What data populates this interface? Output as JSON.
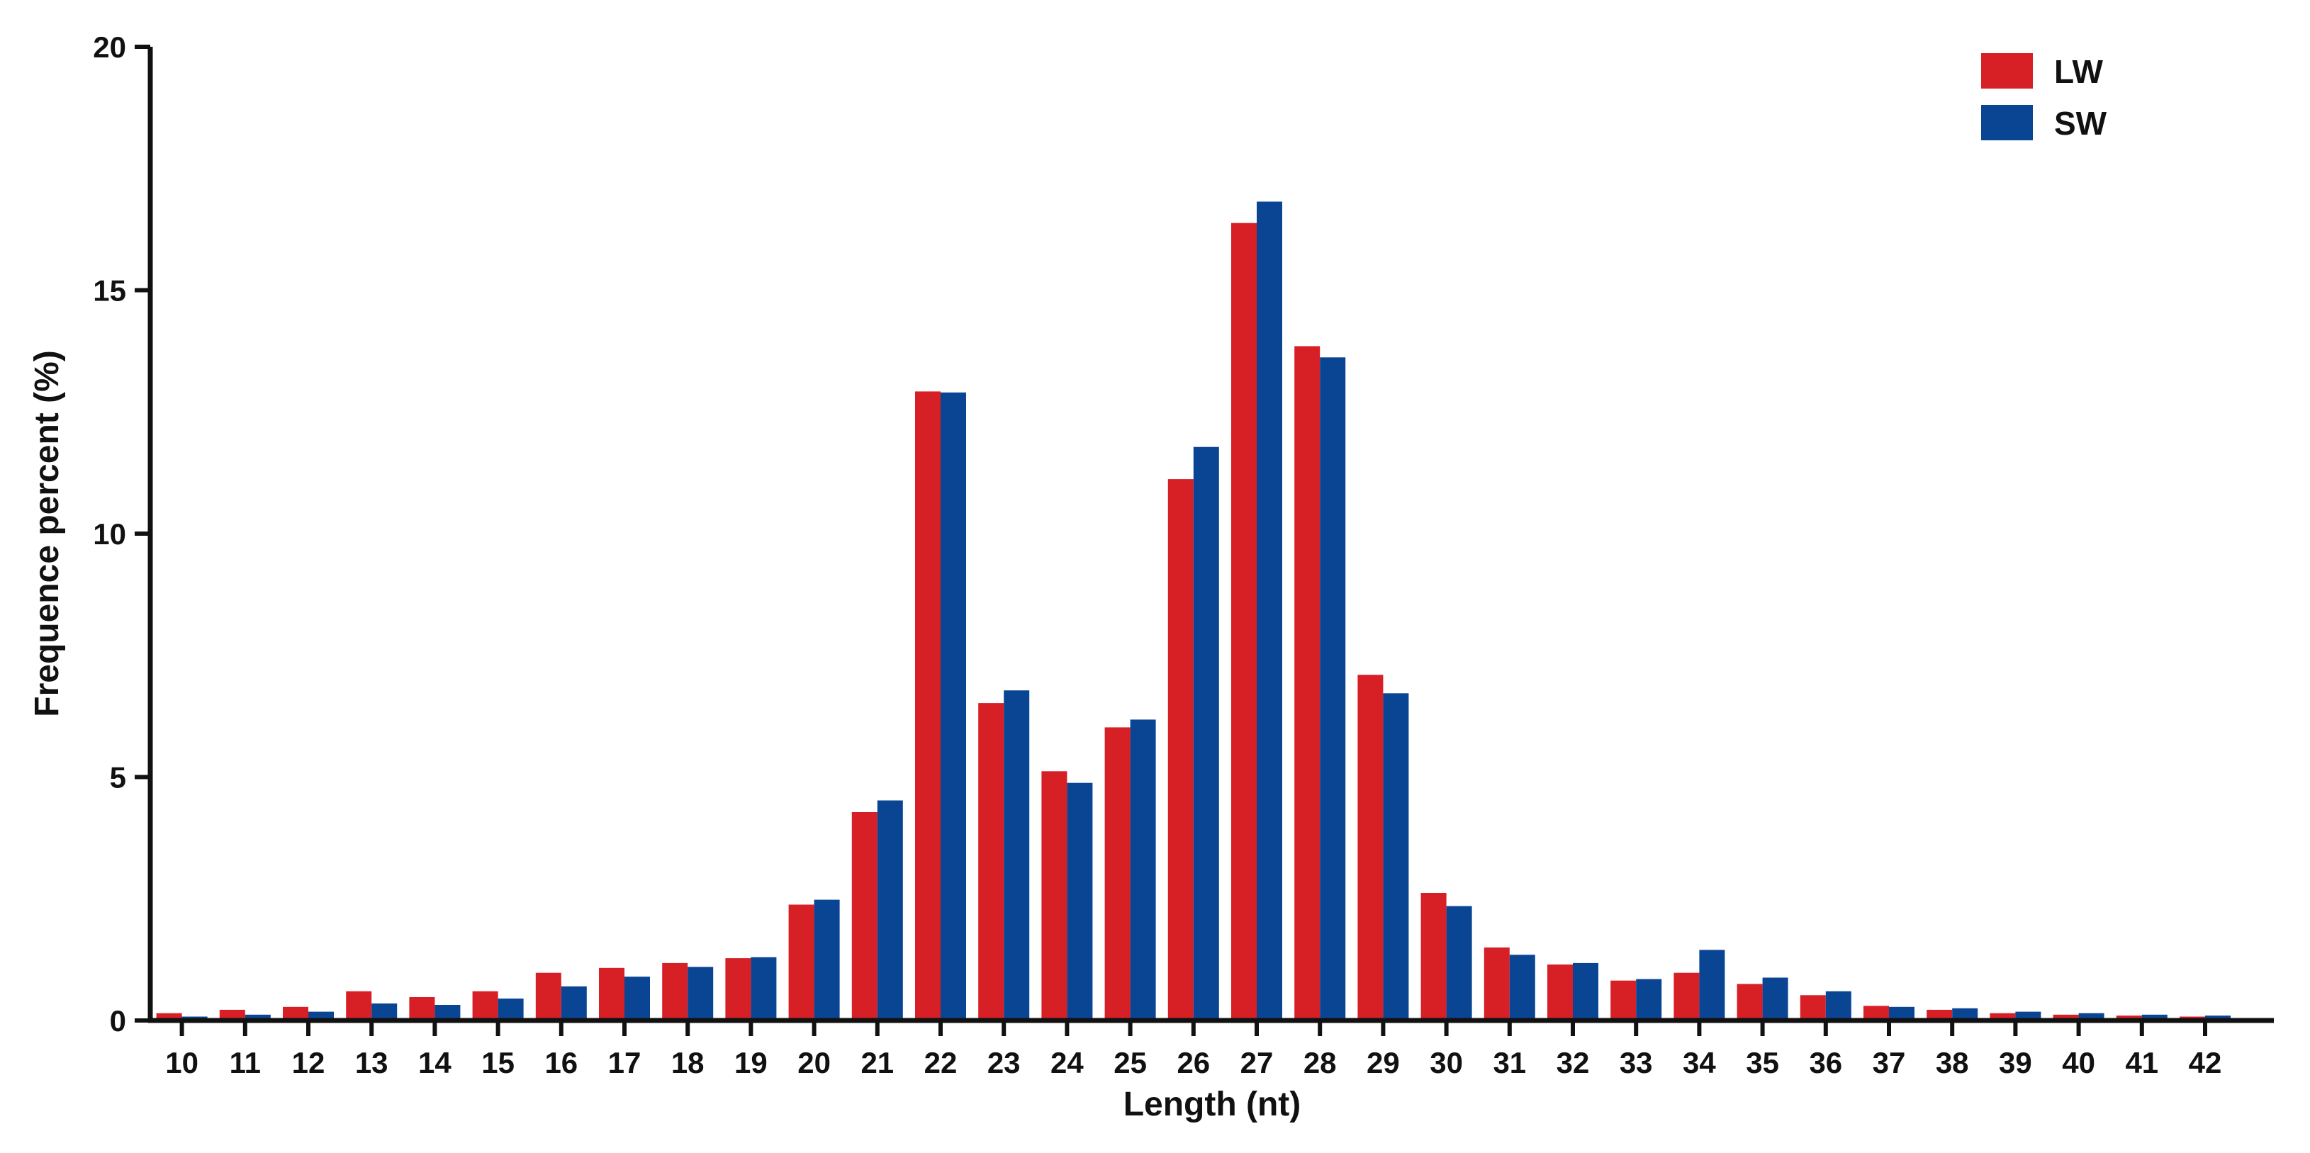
{
  "chart_data": {
    "type": "bar",
    "title": "",
    "xlabel": "Length (nt)",
    "ylabel": "Frequence percent (%)",
    "ylim": [
      0,
      20
    ],
    "yticks": [
      0,
      5,
      10,
      15,
      20
    ],
    "grid": false,
    "legend_position": "top-right",
    "categories": [
      "10",
      "11",
      "12",
      "13",
      "14",
      "15",
      "16",
      "17",
      "18",
      "19",
      "20",
      "21",
      "22",
      "23",
      "24",
      "25",
      "26",
      "27",
      "28",
      "29",
      "30",
      "31",
      "32",
      "33",
      "34",
      "35",
      "36",
      "37",
      "38",
      "39",
      "40",
      "41",
      "42"
    ],
    "series": [
      {
        "name": "LW",
        "color": "#D71F26",
        "values": [
          0.15,
          0.22,
          0.28,
          0.6,
          0.48,
          0.6,
          0.98,
          1.08,
          1.18,
          1.28,
          2.38,
          4.28,
          12.92,
          6.52,
          5.12,
          6.02,
          11.12,
          16.38,
          13.85,
          7.1,
          2.62,
          1.5,
          1.15,
          0.82,
          0.98,
          0.75,
          0.52,
          0.3,
          0.22,
          0.15,
          0.12,
          0.1,
          0.08
        ]
      },
      {
        "name": "SW",
        "color": "#0A4593",
        "values": [
          0.08,
          0.12,
          0.18,
          0.35,
          0.32,
          0.45,
          0.7,
          0.9,
          1.1,
          1.3,
          2.48,
          4.52,
          12.9,
          6.78,
          4.88,
          6.18,
          11.78,
          16.82,
          13.62,
          6.72,
          2.35,
          1.35,
          1.18,
          0.85,
          1.45,
          0.88,
          0.6,
          0.28,
          0.25,
          0.18,
          0.15,
          0.12,
          0.1
        ]
      }
    ]
  }
}
